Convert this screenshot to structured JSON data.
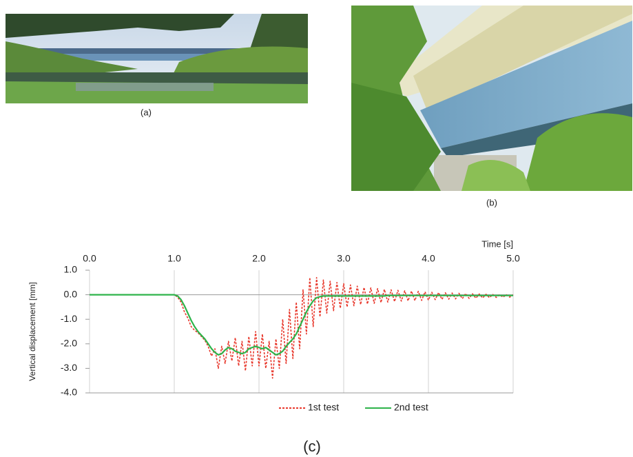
{
  "panels": [
    {
      "label": "(a)"
    },
    {
      "label": "(b)"
    }
  ],
  "caption": "(c)",
  "chart_data": {
    "type": "line",
    "xlabel": "Time [s]",
    "ylabel": "Vertical displacement  [mm]",
    "xlim": [
      0,
      5
    ],
    "ylim": [
      -4,
      1
    ],
    "xticks": [
      {
        "value": 0,
        "label": "0.0"
      },
      {
        "value": 1,
        "label": "1.0"
      },
      {
        "value": 2,
        "label": "2.0"
      },
      {
        "value": 3,
        "label": "3.0"
      },
      {
        "value": 4,
        "label": "4.0"
      },
      {
        "value": 5,
        "label": "5.0"
      }
    ],
    "yticks": [
      {
        "value": 1,
        "label": "1.0"
      },
      {
        "value": 0,
        "label": "0.0"
      },
      {
        "value": -1,
        "label": "-1.0"
      },
      {
        "value": -2,
        "label": "-2.0"
      },
      {
        "value": -3,
        "label": "-3.0"
      },
      {
        "value": -4,
        "label": "-4.0"
      }
    ],
    "grid": "x",
    "legend": "bottom",
    "x": [
      0,
      0.5,
      0.9,
      0.96,
      1,
      1.04,
      1.08,
      1.12,
      1.16,
      1.2,
      1.24,
      1.28,
      1.32,
      1.36,
      1.4,
      1.44,
      1.48,
      1.52,
      1.56,
      1.6,
      1.64,
      1.68,
      1.72,
      1.76,
      1.8,
      1.84,
      1.88,
      1.92,
      1.96,
      2,
      2.04,
      2.08,
      2.12,
      2.16,
      2.2,
      2.24,
      2.28,
      2.32,
      2.36,
      2.4,
      2.44,
      2.48,
      2.52,
      2.56,
      2.6,
      2.64,
      2.68,
      2.72,
      2.76,
      2.8,
      2.84,
      2.88,
      2.92,
      2.96,
      3,
      3.04,
      3.08,
      3.12,
      3.16,
      3.2,
      3.24,
      3.28,
      3.32,
      3.36,
      3.4,
      3.44,
      3.48,
      3.52,
      3.56,
      3.6,
      3.64,
      3.68,
      3.72,
      3.76,
      3.8,
      3.84,
      3.88,
      3.92,
      3.96,
      4,
      4.04,
      4.08,
      4.12,
      4.16,
      4.2,
      4.24,
      4.28,
      4.32,
      4.36,
      4.4,
      4.44,
      4.48,
      4.52,
      4.56,
      4.6,
      4.64,
      4.68,
      4.72,
      4.76,
      4.8,
      4.84,
      4.88,
      4.92,
      4.96,
      5
    ],
    "series": [
      {
        "name": "1st test",
        "color": "#e8382c",
        "line_style": "dashed",
        "values": [
          0,
          0,
          0,
          0,
          0,
          -0.1,
          -0.3,
          -0.7,
          -0.95,
          -1.3,
          -1.45,
          -1.55,
          -1.7,
          -1.85,
          -2.1,
          -2.5,
          -2.2,
          -3.0,
          -2.1,
          -2.8,
          -1.9,
          -2.7,
          -1.75,
          -2.9,
          -1.9,
          -3.1,
          -1.7,
          -2.9,
          -1.5,
          -2.9,
          -1.6,
          -3.0,
          -1.9,
          -3.4,
          -1.8,
          -3.0,
          -1.0,
          -2.8,
          -0.6,
          -2.6,
          -0.3,
          -2.2,
          0.2,
          -1.6,
          0.7,
          -1.3,
          0.7,
          -0.9,
          0.6,
          -0.75,
          0.55,
          -0.65,
          0.5,
          -0.55,
          0.45,
          -0.5,
          0.4,
          -0.45,
          0.35,
          -0.4,
          0.3,
          -0.38,
          0.28,
          -0.35,
          0.25,
          -0.32,
          0.22,
          -0.3,
          0.2,
          -0.28,
          0.18,
          -0.26,
          0.16,
          -0.25,
          0.15,
          -0.24,
          0.14,
          -0.23,
          0.12,
          -0.22,
          0.1,
          -0.2,
          0.09,
          -0.19,
          0.08,
          -0.18,
          0.07,
          -0.17,
          0.06,
          -0.16,
          0.05,
          -0.15,
          0.04,
          -0.14,
          0.03,
          -0.13,
          0.02,
          -0.12,
          0.01,
          -0.11,
          0,
          -0.1,
          0,
          -0.1,
          0
        ]
      },
      {
        "name": "2nd test",
        "color": "#2db34a",
        "line_style": "solid",
        "values": [
          0,
          0,
          0,
          0,
          0,
          -0.05,
          -0.2,
          -0.45,
          -0.75,
          -1.05,
          -1.3,
          -1.5,
          -1.65,
          -1.8,
          -2.0,
          -2.2,
          -2.35,
          -2.45,
          -2.4,
          -2.25,
          -2.15,
          -2.2,
          -2.3,
          -2.35,
          -2.4,
          -2.35,
          -2.2,
          -2.15,
          -2.1,
          -2.15,
          -2.2,
          -2.15,
          -2.25,
          -2.35,
          -2.45,
          -2.4,
          -2.3,
          -2.1,
          -1.95,
          -1.8,
          -1.6,
          -1.3,
          -1.0,
          -0.7,
          -0.45,
          -0.25,
          -0.12,
          -0.08,
          -0.05,
          -0.05,
          -0.05,
          -0.05,
          -0.05,
          -0.05,
          -0.05,
          -0.05,
          -0.05,
          -0.05,
          -0.05,
          -0.05,
          -0.05,
          -0.05,
          -0.05,
          -0.05,
          -0.05,
          -0.05,
          -0.05,
          -0.03,
          -0.03,
          -0.03,
          -0.03,
          -0.03,
          -0.03,
          -0.03,
          -0.03,
          -0.03,
          -0.03,
          -0.03,
          -0.03,
          -0.03,
          -0.03,
          -0.03,
          -0.03,
          -0.03,
          -0.03,
          -0.03,
          -0.03,
          -0.03,
          -0.03,
          -0.03,
          -0.03,
          -0.03,
          -0.03,
          -0.03,
          -0.03,
          -0.03,
          -0.03,
          -0.03,
          -0.03,
          -0.03,
          -0.03,
          -0.03,
          -0.03,
          -0.03,
          -0.03
        ]
      }
    ]
  }
}
